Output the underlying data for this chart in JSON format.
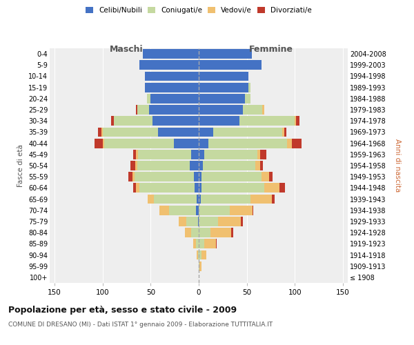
{
  "age_groups": [
    "100+",
    "95-99",
    "90-94",
    "85-89",
    "80-84",
    "75-79",
    "70-74",
    "65-69",
    "60-64",
    "55-59",
    "50-54",
    "45-49",
    "40-44",
    "35-39",
    "30-34",
    "25-29",
    "20-24",
    "15-19",
    "10-14",
    "5-9",
    "0-4"
  ],
  "birth_years": [
    "≤ 1908",
    "1909-1913",
    "1914-1918",
    "1919-1923",
    "1924-1928",
    "1929-1933",
    "1934-1938",
    "1939-1943",
    "1944-1948",
    "1949-1953",
    "1954-1958",
    "1959-1963",
    "1964-1968",
    "1969-1973",
    "1974-1978",
    "1979-1983",
    "1984-1988",
    "1989-1993",
    "1994-1998",
    "1999-2003",
    "2004-2008"
  ],
  "males": {
    "celibe": [
      0,
      0,
      0,
      0,
      0,
      1,
      3,
      2,
      4,
      5,
      9,
      8,
      26,
      42,
      48,
      52,
      50,
      56,
      56,
      62,
      58
    ],
    "coniugato": [
      0,
      0,
      1,
      3,
      8,
      12,
      28,
      45,
      58,
      62,
      55,
      55,
      72,
      58,
      40,
      12,
      4,
      0,
      0,
      0,
      0
    ],
    "vedovo": [
      0,
      0,
      1,
      3,
      6,
      8,
      10,
      6,
      3,
      2,
      2,
      2,
      2,
      1,
      0,
      0,
      0,
      0,
      0,
      0,
      0
    ],
    "divorziato": [
      0,
      0,
      0,
      0,
      0,
      0,
      0,
      0,
      3,
      4,
      5,
      3,
      8,
      4,
      3,
      1,
      0,
      0,
      0,
      0,
      0
    ]
  },
  "females": {
    "nubile": [
      0,
      0,
      0,
      0,
      0,
      0,
      0,
      2,
      3,
      3,
      4,
      6,
      10,
      15,
      42,
      46,
      48,
      52,
      52,
      65,
      55
    ],
    "coniugata": [
      0,
      1,
      3,
      6,
      12,
      20,
      32,
      52,
      65,
      62,
      55,
      55,
      82,
      72,
      58,
      20,
      6,
      2,
      0,
      0,
      0
    ],
    "vedova": [
      0,
      2,
      5,
      12,
      22,
      24,
      24,
      22,
      16,
      8,
      5,
      3,
      5,
      2,
      1,
      2,
      0,
      0,
      0,
      0,
      0
    ],
    "divorziata": [
      0,
      0,
      0,
      1,
      2,
      2,
      1,
      3,
      6,
      4,
      3,
      6,
      10,
      2,
      4,
      0,
      0,
      0,
      0,
      0,
      0
    ]
  },
  "colors": {
    "celibe": "#4472c4",
    "coniugato": "#c5d9a0",
    "vedovo": "#f0c070",
    "divorziato": "#c0392b"
  },
  "maschi_label": "Maschi",
  "femmine_label": "Femmine",
  "ylabel_left": "Fasce di età",
  "ylabel_right": "Anni di nascita",
  "legend_labels": [
    "Celibi/Nubili",
    "Coniugati/e",
    "Vedovi/e",
    "Divorziati/e"
  ],
  "title": "Popolazione per età, sesso e stato civile - 2009",
  "subtitle": "COMUNE DI DRESANO (MI) - Dati ISTAT 1° gennaio 2009 - Elaborazione TUTTITALIA.IT",
  "xlim": 155,
  "xticks": [
    -150,
    -100,
    -50,
    0,
    50,
    100,
    150
  ],
  "background_color": "#ffffff",
  "plot_bg": "#eeeeee"
}
